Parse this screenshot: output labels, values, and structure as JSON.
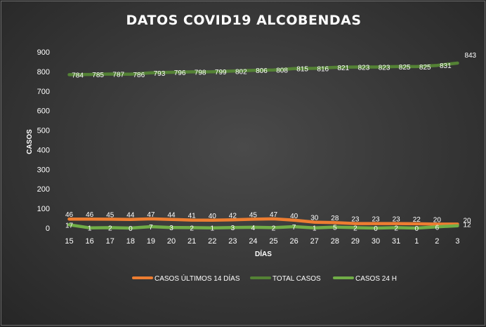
{
  "chart_data": {
    "type": "line",
    "title": "DATOS  COVID19  ALCOBENDAS",
    "xlabel": "DÍAS",
    "ylabel": "CASOS",
    "ylim": [
      0,
      900
    ],
    "yticks": [
      0,
      100,
      200,
      300,
      400,
      500,
      600,
      700,
      800,
      900
    ],
    "categories": [
      "15",
      "16",
      "17",
      "18",
      "19",
      "20",
      "21",
      "22",
      "23",
      "24",
      "25",
      "26",
      "27",
      "28",
      "29",
      "30",
      "31",
      "1",
      "2",
      "3"
    ],
    "grid": false,
    "legend": "bottom",
    "series": [
      {
        "name": "CASOS ÚLTIMOS 14 DÍAS",
        "color": "#ED7D31",
        "values": [
          46,
          46,
          45,
          44,
          47,
          44,
          41,
          40,
          42,
          45,
          47,
          40,
          30,
          28,
          23,
          23,
          23,
          22,
          20,
          20
        ]
      },
      {
        "name": "TOTAL CASOS",
        "color": "#548235",
        "values": [
          784,
          785,
          787,
          786,
          793,
          796,
          798,
          799,
          802,
          806,
          808,
          815,
          816,
          821,
          823,
          823,
          825,
          825,
          831,
          843
        ]
      },
      {
        "name": "CASOS 24 H",
        "color": "#70AD47",
        "values": [
          17,
          1,
          2,
          0,
          7,
          3,
          2,
          1,
          3,
          4,
          2,
          7,
          1,
          5,
          2,
          0,
          2,
          0,
          6,
          12
        ]
      }
    ]
  }
}
